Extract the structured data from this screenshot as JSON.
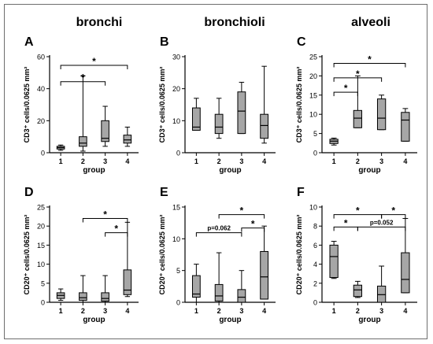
{
  "region_titles": [
    "bronchi",
    "bronchioli",
    "alveoli"
  ],
  "style": {
    "box_fill": "#a6a6a6",
    "line_color": "#000000",
    "frame_color": "#6e6e6e"
  },
  "chart_data": [
    {
      "panel": "A",
      "type": "box",
      "title": "bronchi",
      "xlabel": "group",
      "ylabel": "CD3⁺ cells/0.0625 mm²",
      "categories": [
        "1",
        "2",
        "3",
        "4"
      ],
      "ylim": [
        0,
        60
      ],
      "yticks": [
        0,
        20,
        40,
        60
      ],
      "boxes": [
        {
          "min": 1.5,
          "q1": 2.3,
          "median": 3.2,
          "q3": 4,
          "max": 4.8
        },
        {
          "min": 1,
          "q1": 4,
          "median": 6,
          "q3": 10,
          "max": 48
        },
        {
          "min": 4,
          "q1": 7,
          "median": 9,
          "q3": 20,
          "max": 29
        },
        {
          "min": 4,
          "q1": 6,
          "median": 8,
          "q3": 11,
          "max": 16
        }
      ],
      "significance": [
        {
          "from": 1,
          "to": 4,
          "label": "*"
        },
        {
          "from": 1,
          "to": 3,
          "label": "*"
        }
      ]
    },
    {
      "panel": "B",
      "type": "box",
      "title": "bronchioli",
      "xlabel": "group",
      "ylabel": "CD3⁺ cells/0.0625 mm²",
      "categories": [
        "1",
        "2",
        "3",
        "4"
      ],
      "ylim": [
        0,
        30
      ],
      "yticks": [
        0,
        10,
        20,
        30
      ],
      "boxes": [
        {
          "min": 7,
          "q1": 7,
          "median": 8,
          "q3": 14,
          "max": 17
        },
        {
          "min": 4.5,
          "q1": 6,
          "median": 8,
          "q3": 12,
          "max": 17
        },
        {
          "min": 6,
          "q1": 6,
          "median": 13,
          "q3": 19,
          "max": 22
        },
        {
          "min": 3,
          "q1": 4.5,
          "median": 8.5,
          "q3": 12,
          "max": 27
        }
      ],
      "significance": []
    },
    {
      "panel": "C",
      "type": "box",
      "title": "alveoli",
      "xlabel": "group",
      "ylabel": "CD3⁺ cells/0.0625 mm²",
      "categories": [
        "1",
        "2",
        "3",
        "4"
      ],
      "ylim": [
        0,
        25
      ],
      "yticks": [
        0,
        5,
        10,
        15,
        20,
        25
      ],
      "boxes": [
        {
          "min": 2,
          "q1": 2.4,
          "median": 3,
          "q3": 3.5,
          "max": 3.8
        },
        {
          "min": 6.5,
          "q1": 6.5,
          "median": 9,
          "q3": 11,
          "max": 20
        },
        {
          "min": 6,
          "q1": 6,
          "median": 9,
          "q3": 14,
          "max": 15
        },
        {
          "min": 3,
          "q1": 3,
          "median": 8.5,
          "q3": 10.5,
          "max": 11.5
        }
      ],
      "significance": [
        {
          "from": 1,
          "to": 4,
          "label": "*"
        },
        {
          "from": 1,
          "to": 3,
          "label": "*"
        },
        {
          "from": 1,
          "to": 2,
          "label": "*"
        }
      ]
    },
    {
      "panel": "D",
      "type": "box",
      "title": "bronchi",
      "xlabel": "group",
      "ylabel": "CD20⁺ cells/0.0625 mm²",
      "categories": [
        "1",
        "2",
        "3",
        "4"
      ],
      "ylim": [
        0,
        25
      ],
      "yticks": [
        0,
        5,
        10,
        15,
        20,
        25
      ],
      "boxes": [
        {
          "min": 0.5,
          "q1": 1,
          "median": 1.8,
          "q3": 2.5,
          "max": 3.5
        },
        {
          "min": 0,
          "q1": 0.5,
          "median": 1.2,
          "q3": 2.5,
          "max": 7
        },
        {
          "min": 0,
          "q1": 0.3,
          "median": 1,
          "q3": 2.5,
          "max": 7
        },
        {
          "min": 1.5,
          "q1": 2,
          "median": 3.2,
          "q3": 8.5,
          "max": 21
        }
      ],
      "significance": [
        {
          "from": 2,
          "to": 4,
          "label": "*"
        },
        {
          "from": 3,
          "to": 4,
          "label": "*"
        }
      ]
    },
    {
      "panel": "E",
      "type": "box",
      "title": "bronchioli",
      "xlabel": "group",
      "ylabel": "CD20⁺ cells/0.0625 mm²",
      "categories": [
        "1",
        "2",
        "3",
        "4"
      ],
      "ylim": [
        0,
        15
      ],
      "yticks": [
        0,
        5,
        10,
        15
      ],
      "boxes": [
        {
          "min": 0,
          "q1": 0.8,
          "median": 1.3,
          "q3": 4.2,
          "max": 6
        },
        {
          "min": 0,
          "q1": 0.2,
          "median": 1,
          "q3": 2.8,
          "max": 7.8
        },
        {
          "min": 0,
          "q1": 0,
          "median": 0.8,
          "q3": 2,
          "max": 5
        },
        {
          "min": 0.5,
          "q1": 0.5,
          "median": 4,
          "q3": 8,
          "max": 12
        }
      ],
      "significance": [
        {
          "from": 2,
          "to": 4,
          "label": "*"
        },
        {
          "from": 1,
          "to": 3,
          "label": "p=0.062"
        },
        {
          "from": 3,
          "to": 4,
          "label": "*"
        }
      ]
    },
    {
      "panel": "F",
      "type": "box",
      "title": "alveoli",
      "xlabel": "group",
      "ylabel": "CD20⁺ cells/0.0625 mm²",
      "categories": [
        "1",
        "2",
        "3",
        "4"
      ],
      "ylim": [
        0,
        10
      ],
      "yticks": [
        0,
        2,
        4,
        6,
        8,
        10
      ],
      "boxes": [
        {
          "min": 2.5,
          "q1": 2.6,
          "median": 4.8,
          "q3": 6,
          "max": 6.4
        },
        {
          "min": 0.5,
          "q1": 0.6,
          "median": 1.3,
          "q3": 1.8,
          "max": 2.2
        },
        {
          "min": 0,
          "q1": 0,
          "median": 0.8,
          "q3": 1.7,
          "max": 3.8
        },
        {
          "min": 1,
          "q1": 1,
          "median": 2.4,
          "q3": 5.2,
          "max": 8.8
        }
      ],
      "significance": [
        {
          "from": 1,
          "to": 3,
          "label": "*"
        },
        {
          "from": 3,
          "to": 4,
          "label": "*"
        },
        {
          "from": 2,
          "to": 4,
          "label": "p=0.052"
        },
        {
          "from": 1,
          "to": 2,
          "label": "*"
        }
      ]
    }
  ]
}
